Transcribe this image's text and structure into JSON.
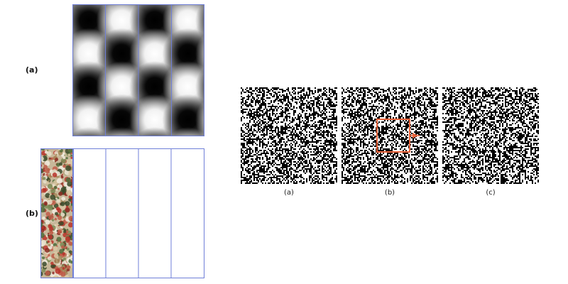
{
  "left_figure": {
    "label_a": "(a)",
    "label_b": "(b)",
    "strip_count": 4,
    "colors": {
      "strip_border": "#6f7fd8",
      "pattern_dark": "#000000",
      "pattern_light": "#ffffff"
    }
  },
  "right_figure": {
    "captions": [
      "(a)",
      "(b)",
      "(c)"
    ],
    "colors": {
      "highlight_box": "#e8643c",
      "noise_dark": "#000000",
      "noise_light": "#ffffff"
    }
  }
}
